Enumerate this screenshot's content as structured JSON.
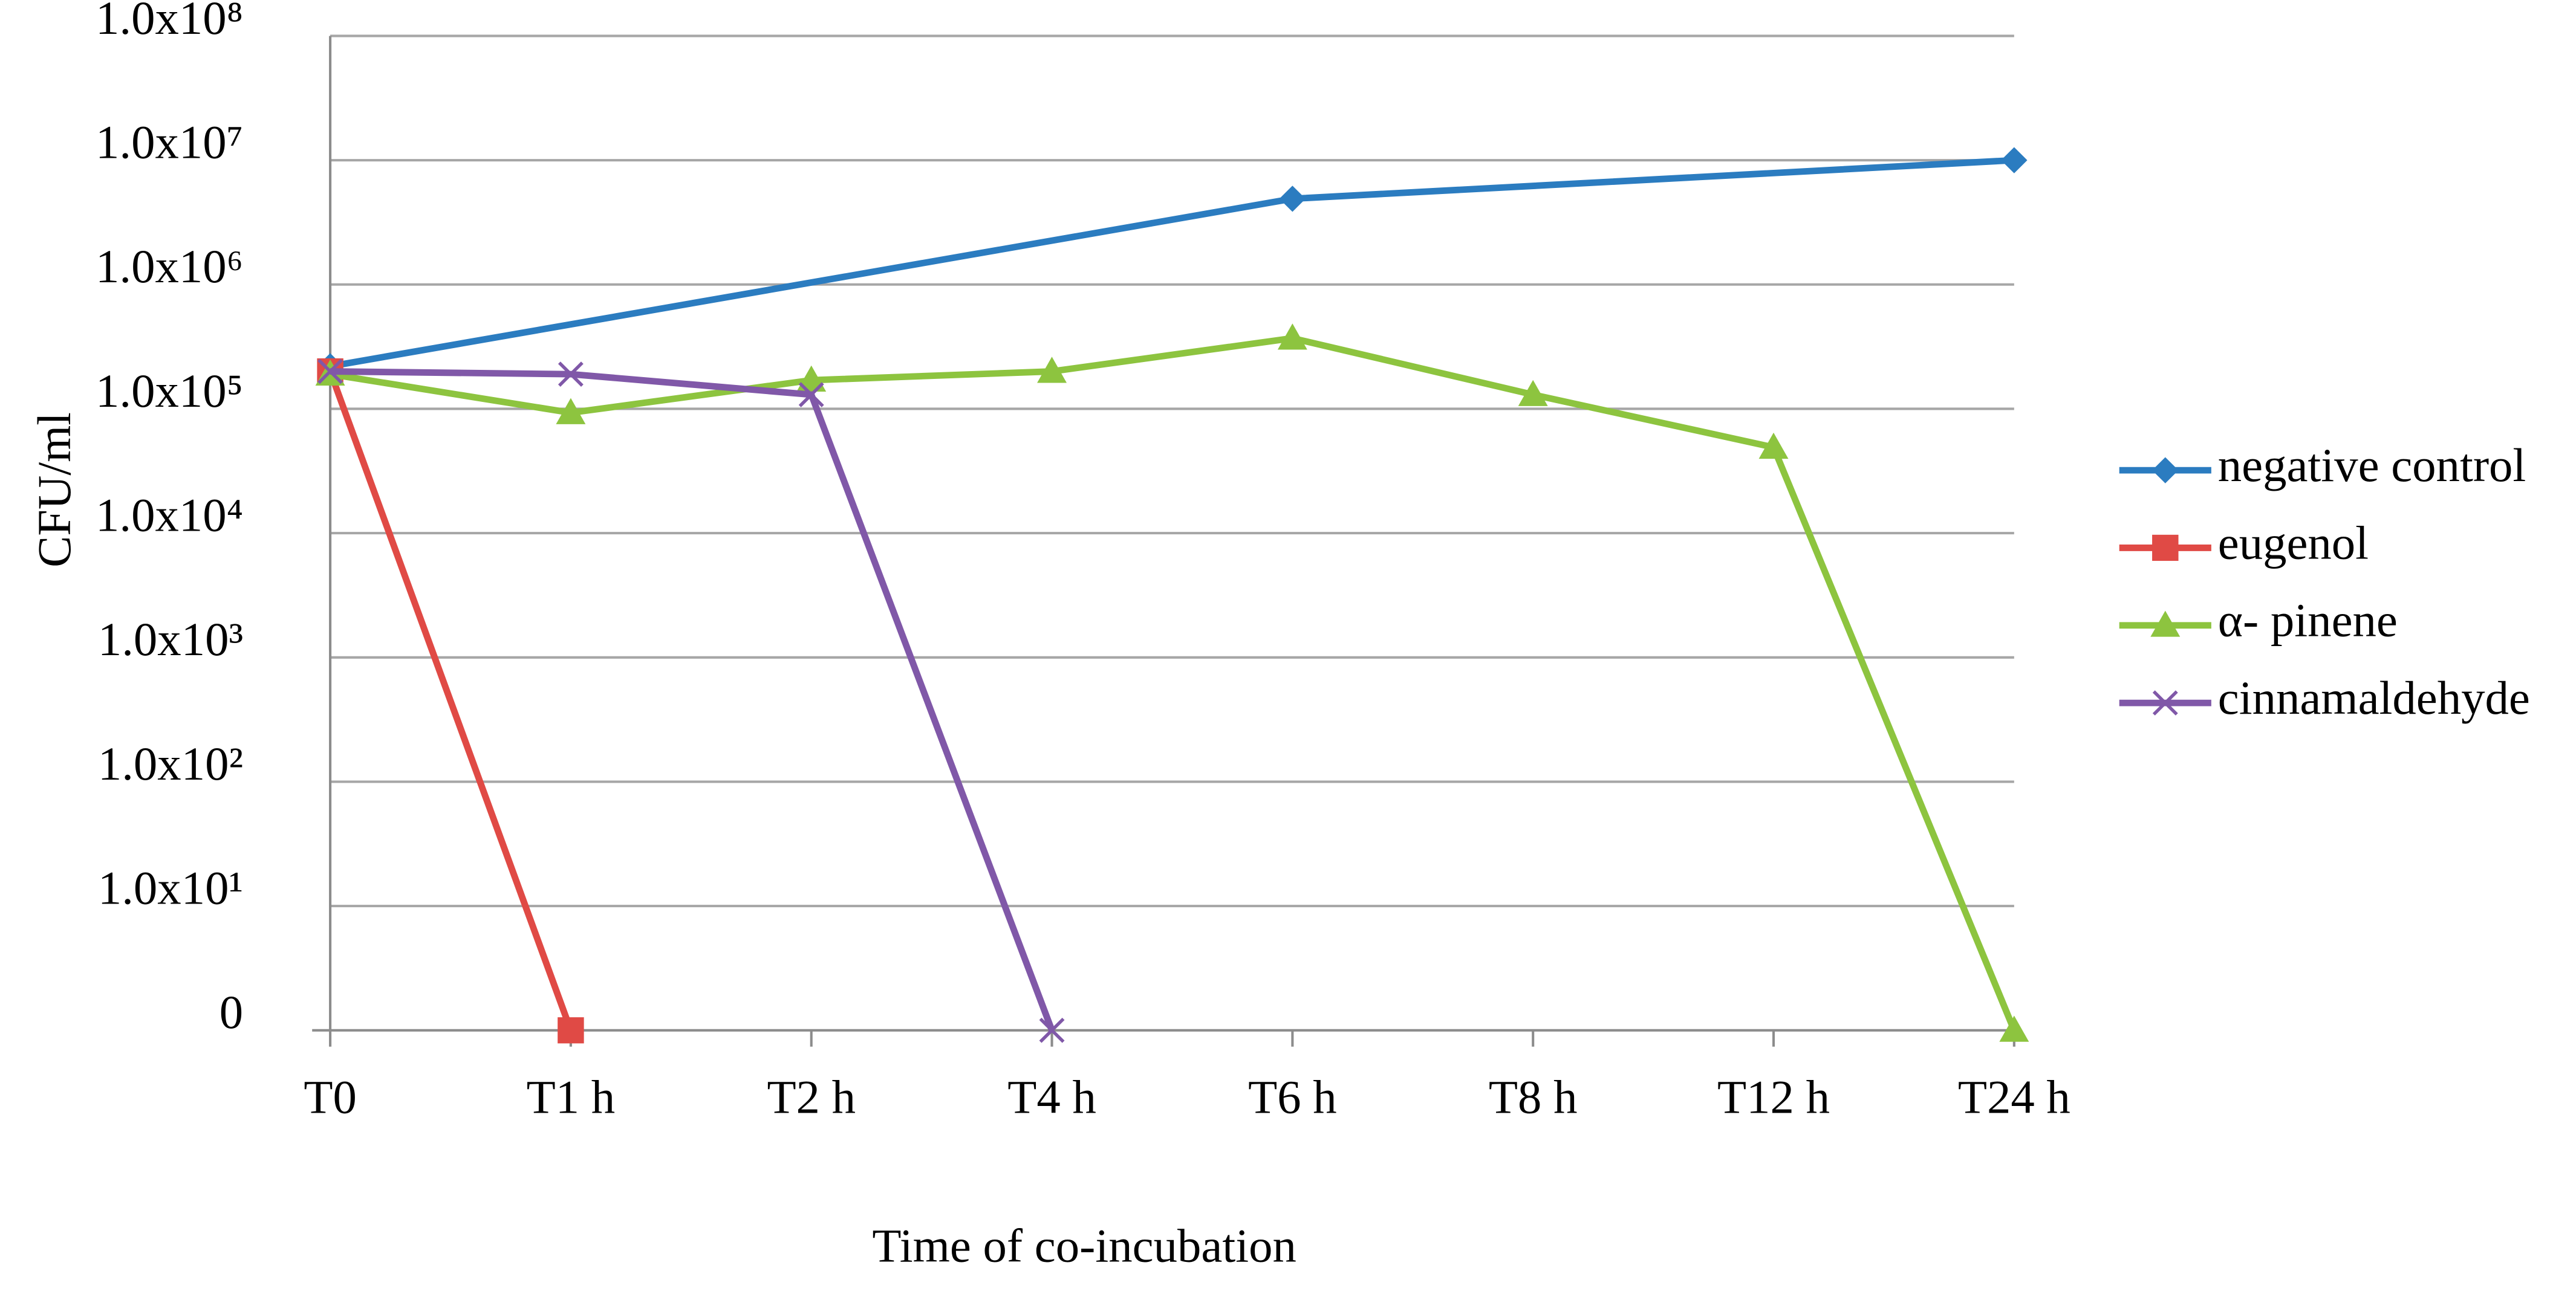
{
  "chart_data": {
    "type": "line",
    "x_label": "Time of co-incubation",
    "y_label": "CFU/ml",
    "categories": [
      "T0",
      "T1 h",
      "T2 h",
      "T4 h",
      "T6 h",
      "T8 h",
      "T12 h",
      "T24 h"
    ],
    "log_y": true,
    "grid": true,
    "legend": "right",
    "ylim": [
      1,
      100000000
    ],
    "yticks": [
      {
        "value": 1,
        "label": "0"
      },
      {
        "value": 10,
        "label": "1.0x10¹"
      },
      {
        "value": 100,
        "label": "1.0x10²"
      },
      {
        "value": 1000,
        "label": "1.0x10³"
      },
      {
        "value": 10000,
        "label": "1.0x10⁴"
      },
      {
        "value": 100000,
        "label": "1.0x10⁵"
      },
      {
        "value": 1000000,
        "label": "1.0x10⁶"
      },
      {
        "value": 10000000,
        "label": "1.0x10⁷"
      },
      {
        "value": 100000000,
        "label": "1.0x10⁸"
      }
    ],
    "series": [
      {
        "name": "negative control",
        "color": "#2b7cc0",
        "marker": "diamond",
        "values": [
          220000,
          null,
          null,
          null,
          4900000,
          null,
          null,
          10000000
        ]
      },
      {
        "name": "eugenol",
        "color": "#e04a45",
        "marker": "square",
        "values": [
          200000,
          1,
          null,
          null,
          null,
          null,
          null,
          null
        ]
      },
      {
        "name": "α- pinene",
        "color": "#8dc43f",
        "marker": "triangle",
        "values": [
          190000,
          93000,
          170000,
          200000,
          370000,
          130000,
          49000,
          1
        ]
      },
      {
        "name": "cinnamaldehyde",
        "color": "#8058a8",
        "marker": "x",
        "values": [
          200000,
          190000,
          130000,
          1,
          null,
          null,
          null,
          null
        ]
      }
    ]
  }
}
